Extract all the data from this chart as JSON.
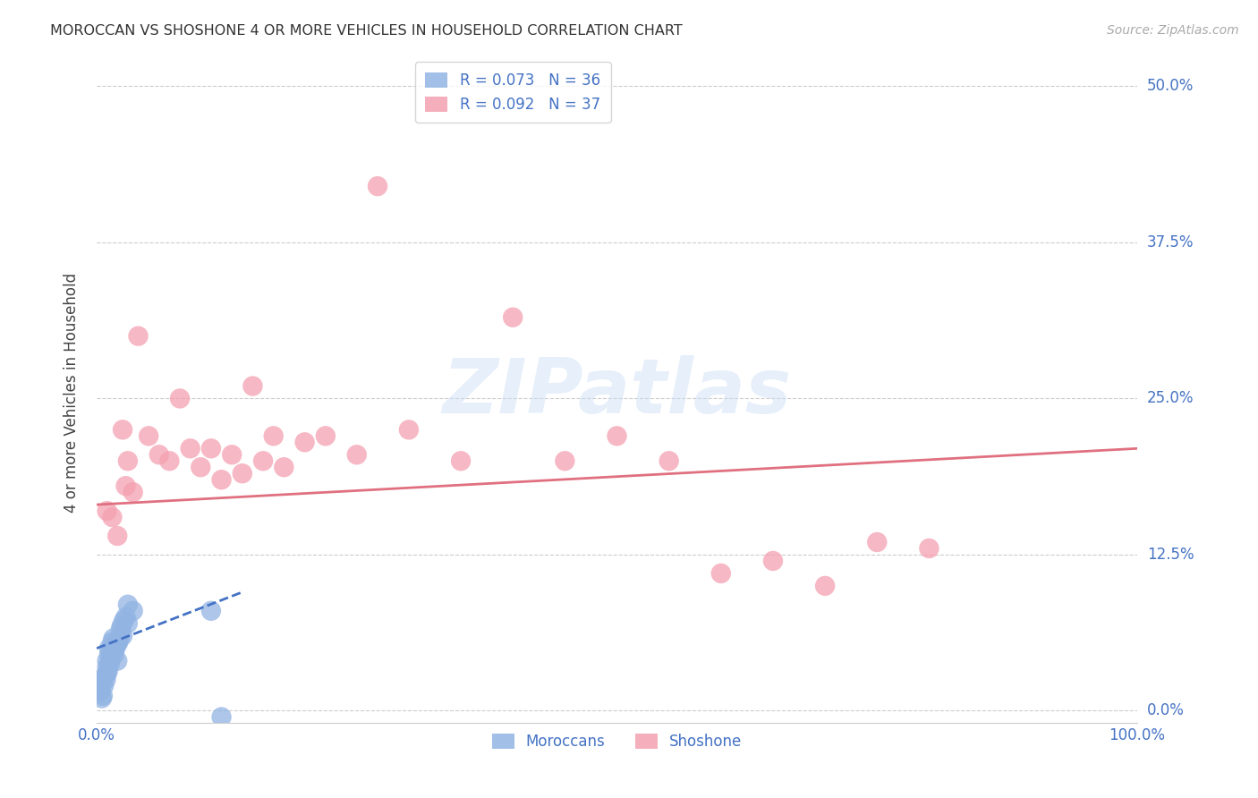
{
  "title": "MOROCCAN VS SHOSHONE 4 OR MORE VEHICLES IN HOUSEHOLD CORRELATION CHART",
  "source": "Source: ZipAtlas.com",
  "ylabel": "4 or more Vehicles in Household",
  "ytick_values": [
    0.0,
    12.5,
    25.0,
    37.5,
    50.0
  ],
  "xlim": [
    0.0,
    100.0
  ],
  "ylim": [
    -1.0,
    52.0
  ],
  "watermark": "ZIPatlas",
  "legend_moroccan": "R = 0.073   N = 36",
  "legend_shoshone": "R = 0.092   N = 37",
  "moroccan_color": "#92b4e3",
  "shoshone_color": "#f4a0b0",
  "moroccan_line_color": "#4472c4",
  "shoshone_line_color": "#e07080",
  "axis_label_color": "#4472c4",
  "background_color": "#ffffff",
  "moroccan_points_x": [
    0.3,
    0.4,
    0.5,
    0.5,
    0.6,
    0.7,
    0.8,
    0.9,
    1.0,
    1.0,
    1.0,
    1.1,
    1.2,
    1.2,
    1.3,
    1.4,
    1.5,
    1.5,
    1.6,
    1.7,
    1.8,
    1.9,
    2.0,
    2.0,
    2.1,
    2.2,
    2.3,
    2.4,
    2.5,
    2.6,
    2.8,
    3.0,
    3.0,
    3.5,
    11.0,
    12.0
  ],
  "moroccan_points_y": [
    1.5,
    1.8,
    1.0,
    2.5,
    1.2,
    2.0,
    2.8,
    2.5,
    3.5,
    4.0,
    3.0,
    3.2,
    4.5,
    5.0,
    3.8,
    4.2,
    5.5,
    4.8,
    5.8,
    4.5,
    5.0,
    5.2,
    4.0,
    5.5,
    5.5,
    5.8,
    6.5,
    6.8,
    6.0,
    7.2,
    7.5,
    7.0,
    8.5,
    8.0,
    8.0,
    -0.5
  ],
  "shoshone_points_x": [
    1.0,
    1.5,
    2.0,
    2.5,
    2.8,
    3.0,
    3.5,
    4.0,
    5.0,
    6.0,
    7.0,
    8.0,
    9.0,
    10.0,
    11.0,
    12.0,
    13.0,
    14.0,
    15.0,
    16.0,
    17.0,
    18.0,
    20.0,
    22.0,
    25.0,
    27.0,
    30.0,
    35.0,
    40.0,
    45.0,
    50.0,
    55.0,
    60.0,
    65.0,
    70.0,
    75.0,
    80.0
  ],
  "shoshone_points_y": [
    16.0,
    15.5,
    14.0,
    22.5,
    18.0,
    20.0,
    17.5,
    30.0,
    22.0,
    20.5,
    20.0,
    25.0,
    21.0,
    19.5,
    21.0,
    18.5,
    20.5,
    19.0,
    26.0,
    20.0,
    22.0,
    19.5,
    21.5,
    22.0,
    20.5,
    42.0,
    22.5,
    20.0,
    31.5,
    20.0,
    22.0,
    20.0,
    11.0,
    12.0,
    10.0,
    13.5,
    13.0
  ],
  "moroccan_trend_x0": 0.0,
  "moroccan_trend_x1": 14.0,
  "moroccan_trend_y0": 5.0,
  "moroccan_trend_y1": 9.5,
  "shoshone_trend_x0": 0.0,
  "shoshone_trend_x1": 100.0,
  "shoshone_trend_y0": 16.5,
  "shoshone_trend_y1": 21.0
}
